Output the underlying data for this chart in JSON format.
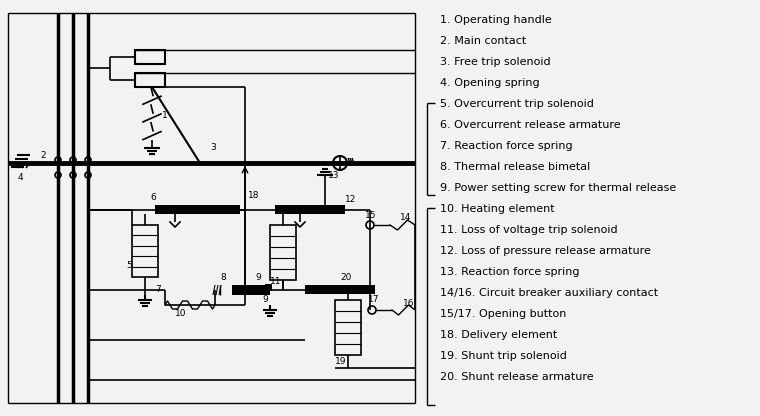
{
  "legend_items": [
    "1. Operating handle",
    "2. Main contact",
    "3. Free trip solenoid",
    "4. Opening spring",
    "5. Overcurrent trip solenoid",
    "6. Overcurrent release armature",
    "7. Reaction force spring",
    "8. Thermal release bimetal",
    "9. Power setting screw for thermal release",
    "10. Heating element",
    "11. Loss of voltage trip solenoid",
    "12. Loss of pressure release armature",
    "13. Reaction force spring",
    "14/16. Circuit breaker auxiliary contact",
    "15/17. Opening button",
    "18. Delivery element",
    "19. Shunt trip solenoid",
    "20. Shunt release armature"
  ],
  "bg_color": "#f2f2f2",
  "line_color": "#000000",
  "text_color": "#000000"
}
